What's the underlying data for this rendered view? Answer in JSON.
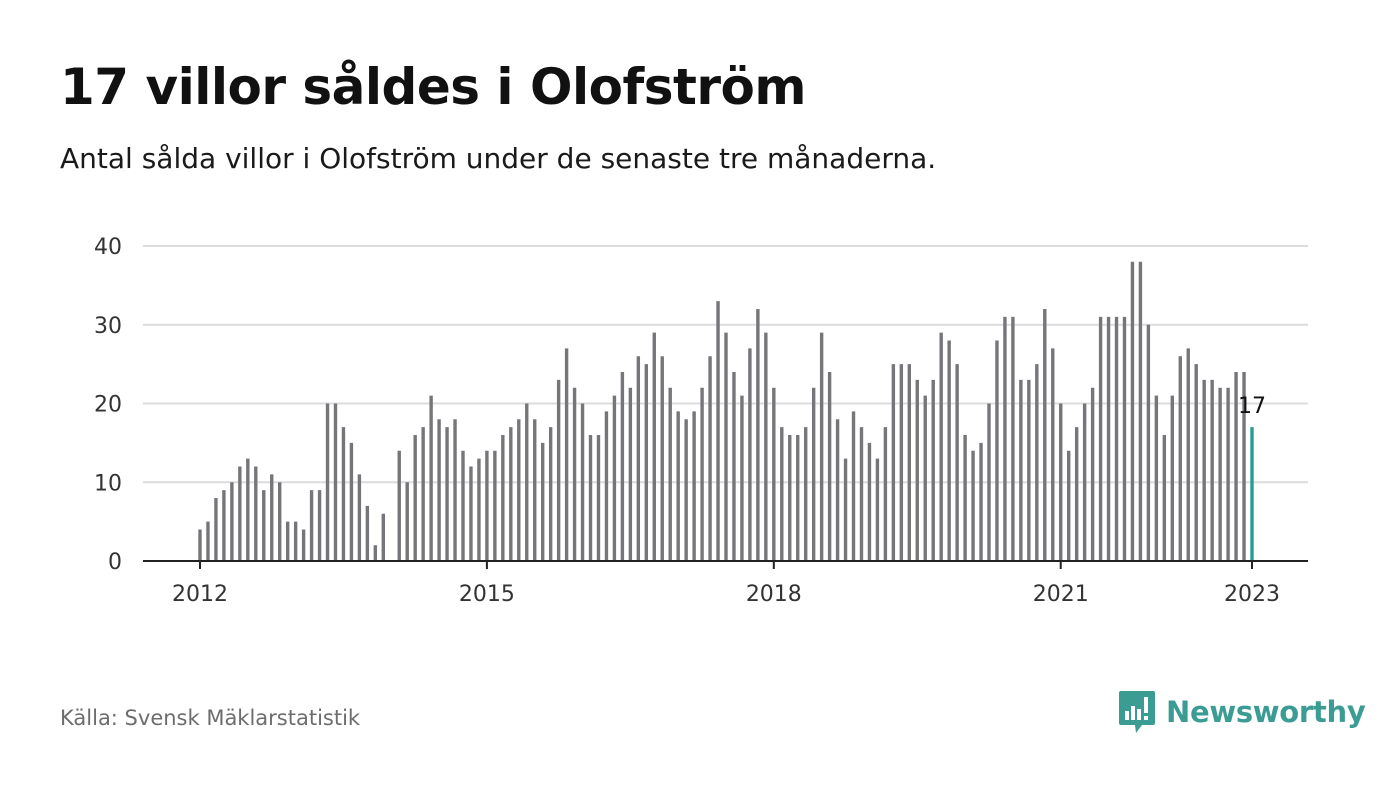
{
  "header": {
    "title": "17 villor såldes i Olofström",
    "subtitle": "Antal sålda villor i Olofström under de senaste tre månaderna."
  },
  "footer": {
    "source": "Källa: Svensk Mäklarstatistik",
    "brand": "Newsworthy"
  },
  "colors": {
    "bar": "#76767a",
    "highlight": "#2a9d8f",
    "grid": "#dcdcdc",
    "brand": "#3b9c94"
  },
  "chart_data": {
    "type": "bar",
    "x_start": "2012-01",
    "x_end": "2023-01",
    "frequency": "monthly",
    "x_ticks": [
      "2012",
      "2015",
      "2018",
      "2021",
      "2023"
    ],
    "y_ticks": [
      0,
      10,
      20,
      30,
      40
    ],
    "ylim": [
      0,
      40
    ],
    "grid": true,
    "highlight_label": "17",
    "values": [
      4,
      5,
      8,
      9,
      10,
      12,
      13,
      12,
      9,
      11,
      10,
      5,
      5,
      4,
      9,
      9,
      20,
      20,
      17,
      15,
      11,
      7,
      2,
      6,
      0,
      14,
      10,
      16,
      17,
      21,
      18,
      17,
      18,
      14,
      12,
      13,
      14,
      14,
      16,
      17,
      18,
      20,
      18,
      15,
      17,
      23,
      27,
      22,
      20,
      16,
      16,
      19,
      21,
      24,
      22,
      26,
      25,
      29,
      26,
      22,
      19,
      18,
      19,
      22,
      26,
      33,
      29,
      24,
      21,
      27,
      32,
      29,
      22,
      17,
      16,
      16,
      17,
      22,
      29,
      24,
      18,
      13,
      19,
      17,
      15,
      13,
      17,
      25,
      25,
      25,
      23,
      21,
      23,
      29,
      28,
      25,
      16,
      14,
      15,
      20,
      28,
      31,
      31,
      23,
      23,
      25,
      32,
      27,
      20,
      14,
      17,
      20,
      22,
      31,
      31,
      31,
      31,
      38,
      38,
      30,
      21,
      16,
      21,
      26,
      27,
      25,
      23,
      23,
      22,
      22,
      24,
      24,
      17
    ]
  }
}
